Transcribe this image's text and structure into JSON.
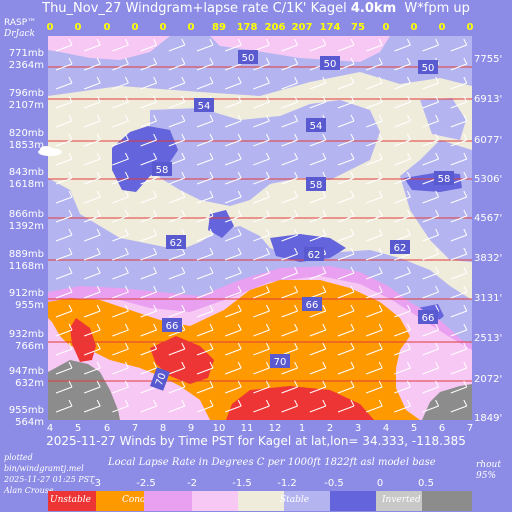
{
  "title": {
    "prefix": "Thu_Nov_27 Windgram+lapse rate C/1K' Kagel",
    "height": "4.0km",
    "suffix": "W*fpm up"
  },
  "brand": {
    "name": "RASP™",
    "author": "DrJack"
  },
  "colors": {
    "background": "#8c8ce6",
    "stable": "#b4b4f0",
    "weakly_stable": "#6464dc",
    "cream": "#f0ecdc",
    "pink": "#f8c8f4",
    "magenta": "#e9a0f0",
    "orange": "#ff9900",
    "red": "#ee3535",
    "grey": "#8c8c8c",
    "light_grey": "#c8c8c8",
    "pressure_line": "#e03c3c"
  },
  "chart_data": {
    "type": "heatmap",
    "x_axis": {
      "label": "2025-11-27 Winds by Time PST for Kagel at lat,lon= 34.333, -118.385",
      "ticks": [
        "4",
        "5",
        "6",
        "7",
        "8",
        "9",
        "10",
        "11",
        "12",
        "1",
        "2",
        "3",
        "4",
        "5",
        "6",
        "7"
      ]
    },
    "wstar_fpm": [
      "0",
      "0",
      "0",
      "0",
      "0",
      "0",
      "89",
      "178",
      "206",
      "207",
      "174",
      "75",
      "0",
      "0",
      "0",
      "0"
    ],
    "left_axis": [
      {
        "mb": "771mb",
        "m": "2364m"
      },
      {
        "mb": "796mb",
        "m": "2107m"
      },
      {
        "mb": "820mb",
        "m": "1853m"
      },
      {
        "mb": "843mb",
        "m": "1618m"
      },
      {
        "mb": "866mb",
        "m": "1392m"
      },
      {
        "mb": "889mb",
        "m": "1168m"
      },
      {
        "mb": "912mb",
        "m": "955m"
      },
      {
        "mb": "932mb",
        "m": "766m"
      },
      {
        "mb": "947mb",
        "m": "632m"
      },
      {
        "mb": "955mb",
        "m": "564m"
      }
    ],
    "right_axis": [
      "7755'",
      "6913'",
      "6077'",
      "5306'",
      "4567'",
      "3832'",
      "3131'",
      "2513'",
      "2072'",
      "1849'"
    ],
    "wind_speed_labels": [
      "50",
      "50",
      "50",
      "54",
      "54",
      "58",
      "58",
      "58",
      "62",
      "62",
      "62",
      "66",
      "66",
      "66",
      "70",
      "70"
    ],
    "legend": {
      "title": "Local Lapse Rate in Degrees C per 1000ft  1822ft asl model base",
      "ticks": [
        "-3",
        "-2.5",
        "-2",
        "-1.5",
        "-1.2",
        "-0.5",
        "0",
        "0.5"
      ],
      "segments": [
        "Unstable",
        "Conditional Instability",
        "Stable",
        "Inverted"
      ]
    },
    "footer": {
      "line1": "plotted",
      "line2": "bin/windgramtj.mel",
      "line3": "2025-11-27 01:25 PST",
      "line4": "Alan Crouse",
      "rhout": "rhout",
      "rh": "95%"
    }
  }
}
